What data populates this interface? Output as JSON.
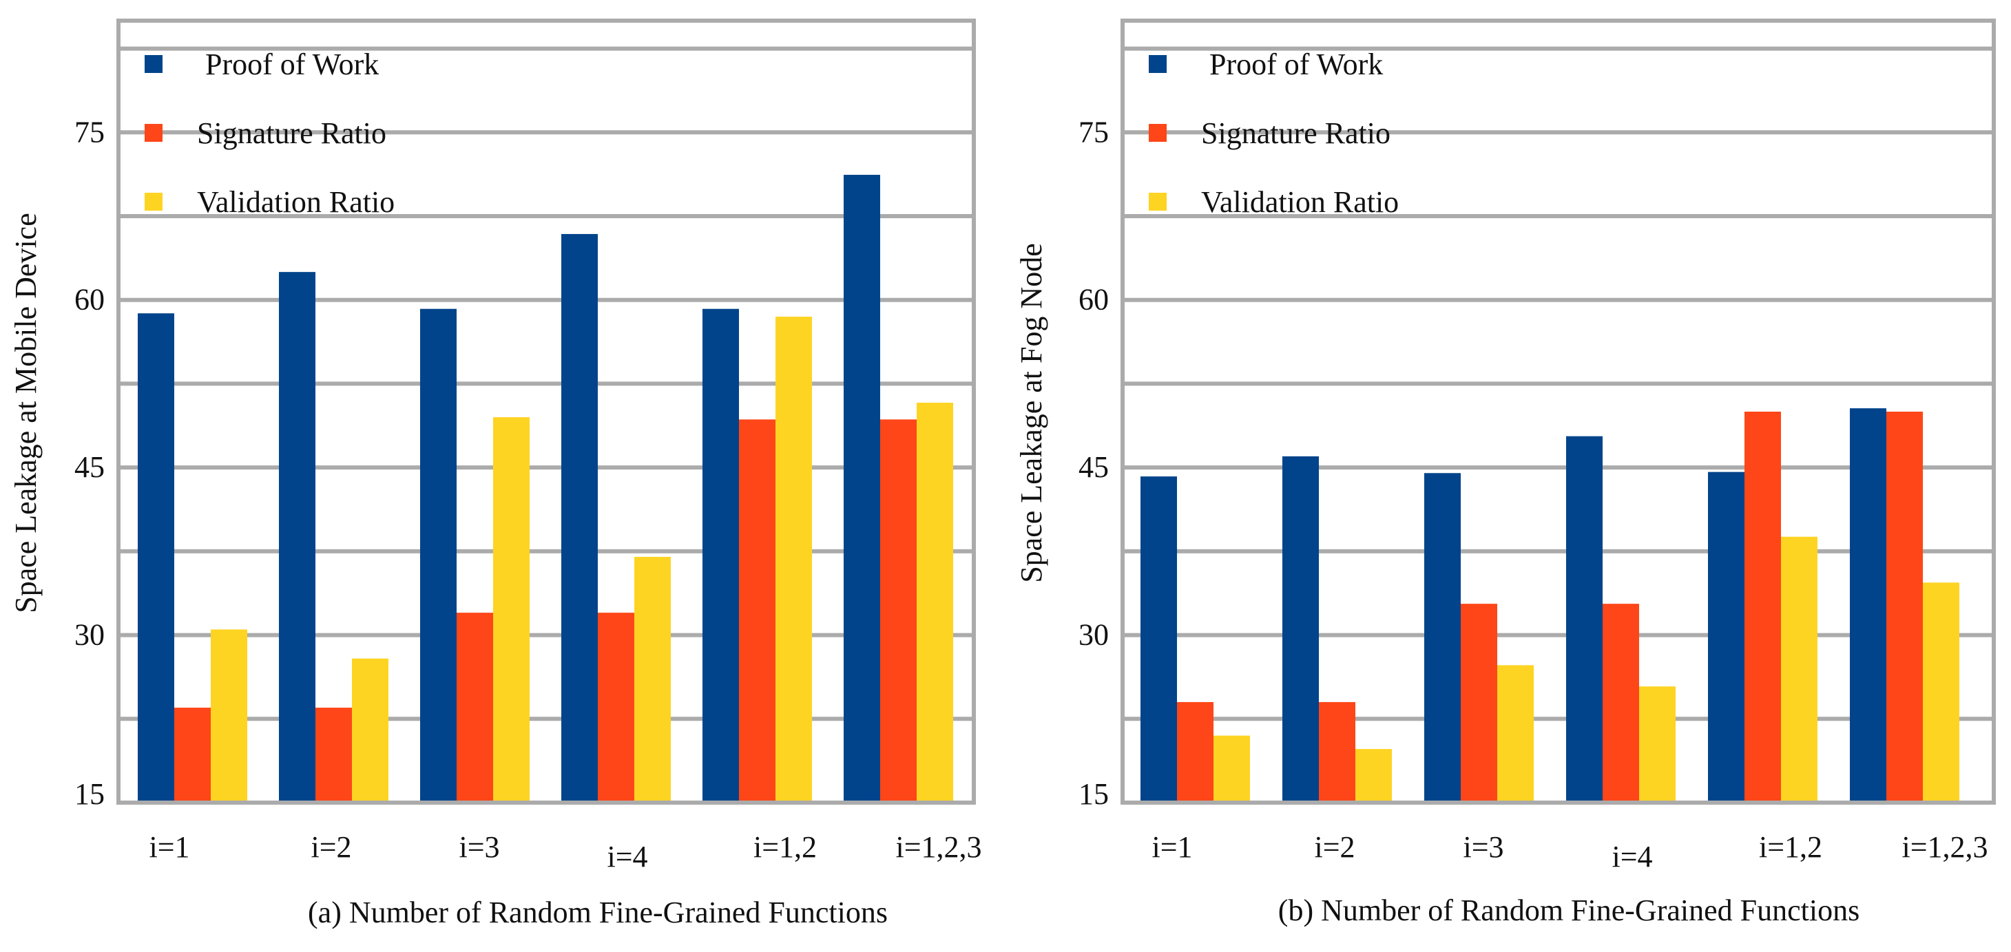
{
  "colors": {
    "proof_of_work": "#02448B",
    "signature_ratio": "#FE4618",
    "validation_ratio": "#FED423",
    "frame": "#ABABAB"
  },
  "chart_data": [
    {
      "type": "bar",
      "caption": "(a) Number of Random Fine-Grained Functions",
      "xlabel": "",
      "ylabel": "Space Leakage at Mobile Device",
      "ylim": [
        15,
        85
      ],
      "yticks": [
        15,
        30,
        45,
        60,
        75
      ],
      "grid": true,
      "legend_position": "top-left",
      "categories": [
        "i=1",
        "i=2",
        "i=3",
        "i=4",
        "i=1,2",
        "i=1,2,3"
      ],
      "series": [
        {
          "name": "Proof of Work",
          "color": "#02448B",
          "values": [
            58.8,
            62.5,
            59.2,
            65.9,
            59.2,
            71.2
          ]
        },
        {
          "name": "Signature Ratio",
          "color": "#FE4618",
          "values": [
            23.5,
            23.5,
            32.0,
            32.0,
            49.3,
            49.3
          ]
        },
        {
          "name": "Validation Ratio",
          "color": "#FED423",
          "values": [
            30.5,
            27.9,
            49.5,
            37.0,
            58.5,
            50.8
          ]
        }
      ]
    },
    {
      "type": "bar",
      "caption": "(b) Number of Random Fine-Grained Functions",
      "xlabel": "",
      "ylabel": "Space Leakage at Fog Node",
      "ylim": [
        15,
        85
      ],
      "yticks": [
        15,
        30,
        45,
        60,
        75
      ],
      "grid": true,
      "legend_position": "top-left",
      "categories": [
        "i=1",
        "i=2",
        "i=3",
        "i=4",
        "i=1,2",
        "i=1,2,3"
      ],
      "series": [
        {
          "name": "Proof of Work",
          "color": "#02448B",
          "values": [
            44.2,
            46.0,
            44.5,
            47.8,
            44.6,
            50.3
          ]
        },
        {
          "name": "Signature Ratio",
          "color": "#FE4618",
          "values": [
            24.0,
            24.0,
            32.8,
            32.8,
            50.0,
            50.0
          ]
        },
        {
          "name": "Validation Ratio",
          "color": "#FED423",
          "values": [
            21.0,
            19.8,
            27.3,
            25.4,
            38.8,
            34.7
          ]
        }
      ]
    }
  ]
}
